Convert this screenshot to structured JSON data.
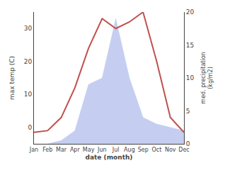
{
  "chart_data": {
    "type": "line",
    "categories": [
      "Jan",
      "Feb",
      "Mar",
      "Apr",
      "May",
      "Jun",
      "Jul",
      "Aug",
      "Sep",
      "Oct",
      "Nov",
      "Dec"
    ],
    "series": [
      {
        "type": "area",
        "axis": "y2",
        "color": "#c5cef0",
        "values": [
          0,
          0,
          0.5,
          2,
          9,
          10,
          19,
          10,
          4,
          3,
          2.5,
          2
        ]
      },
      {
        "type": "line",
        "color": "#c0504d",
        "values": [
          -1.5,
          -1,
          3,
          12,
          24,
          33,
          30,
          32,
          35,
          20,
          3,
          -1.5
        ]
      }
    ],
    "xlabel": "date (month)",
    "ylabel": "max temp (C)",
    "y2label": "med. precipitation\n(kg/m2)",
    "ylim": [
      -5,
      35
    ],
    "yticks": [
      0,
      10,
      20,
      30
    ],
    "y2lim": [
      0,
      20
    ],
    "y2ticks": [
      0,
      5,
      10,
      15,
      20
    ],
    "grid": false
  }
}
